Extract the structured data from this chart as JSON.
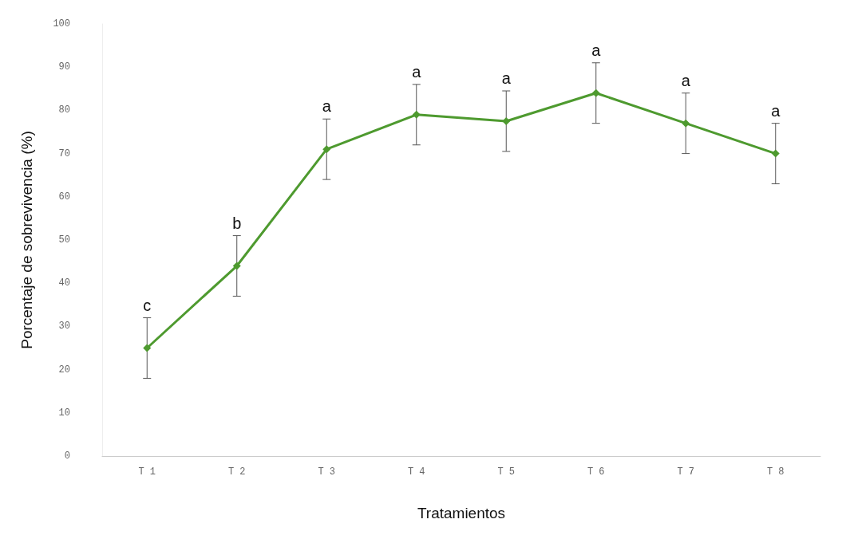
{
  "chart_data": {
    "type": "line",
    "xlabel": "Tratamientos",
    "ylabel": "Porcentaje de sobrevivencia (%)",
    "categories": [
      "T 1",
      "T 2",
      "T 3",
      "T 4",
      "T 5",
      "T 6",
      "T 7",
      "T 8"
    ],
    "series": [
      {
        "color": "#4e9a2f",
        "values": [
          25,
          44,
          71,
          79,
          77.5,
          84,
          77,
          70
        ],
        "errors": [
          7,
          7,
          7,
          7,
          7,
          7,
          7,
          7
        ]
      }
    ],
    "ylim": [
      0,
      100
    ],
    "yticks": [
      0,
      10,
      20,
      30,
      40,
      50,
      60,
      70,
      80,
      90,
      100
    ],
    "grid": false,
    "marker": "diamond",
    "line_style": "solid",
    "annotations": [
      {
        "text": "c",
        "x": "T 1",
        "y": 32
      },
      {
        "text": "b",
        "x": "T 2",
        "y": 51
      },
      {
        "text": "a",
        "x": "T 3",
        "y": 78
      },
      {
        "text": "a",
        "x": "T 4",
        "y": 86
      },
      {
        "text": "a",
        "x": "T 5",
        "y": 84.5
      },
      {
        "text": "a",
        "x": "T 6",
        "y": 91
      },
      {
        "text": "a",
        "x": "T 7",
        "y": 84
      },
      {
        "text": "a",
        "x": "T 8",
        "y": 77
      }
    ]
  }
}
